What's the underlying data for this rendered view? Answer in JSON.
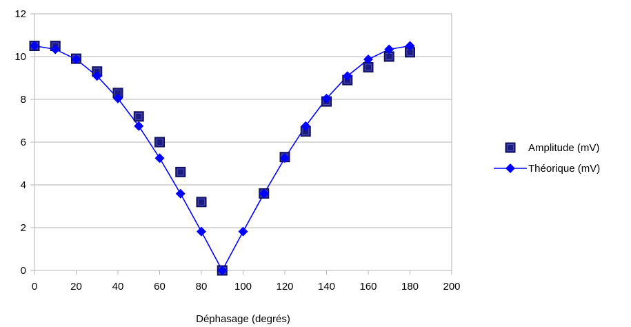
{
  "chart_data": {
    "type": "scatter",
    "title": "",
    "xlabel": "Déphasage (degrés)",
    "ylabel": "",
    "xlim": [
      0,
      200
    ],
    "ylim": [
      0,
      12
    ],
    "xticks": [
      0,
      20,
      40,
      60,
      80,
      100,
      120,
      140,
      160,
      180,
      200
    ],
    "yticks": [
      0,
      2,
      4,
      6,
      8,
      10,
      12
    ],
    "grid": "horizontal",
    "legend_position": "right",
    "series": [
      {
        "name": "Amplitude (mV)",
        "marker": "square",
        "line": false,
        "color": "#1a1a80",
        "x": [
          0,
          10,
          20,
          30,
          40,
          50,
          60,
          70,
          80,
          90,
          110,
          120,
          130,
          140,
          150,
          160,
          170,
          180
        ],
        "y": [
          10.5,
          10.5,
          9.9,
          9.3,
          8.3,
          7.2,
          6.0,
          4.6,
          3.2,
          0.0,
          3.6,
          5.3,
          6.5,
          7.9,
          8.9,
          9.5,
          10.0,
          10.2
        ]
      },
      {
        "name": "Théorique (mV)",
        "marker": "diamond",
        "line": true,
        "color": "#0000ff",
        "x": [
          0,
          10,
          20,
          30,
          40,
          50,
          60,
          70,
          80,
          90,
          100,
          110,
          120,
          130,
          140,
          150,
          160,
          170,
          180
        ],
        "y": [
          10.5,
          10.34,
          9.87,
          9.09,
          8.04,
          6.75,
          5.25,
          3.59,
          1.82,
          0.0,
          1.82,
          3.59,
          5.25,
          6.75,
          8.04,
          9.09,
          9.87,
          10.34,
          10.5
        ]
      }
    ]
  }
}
